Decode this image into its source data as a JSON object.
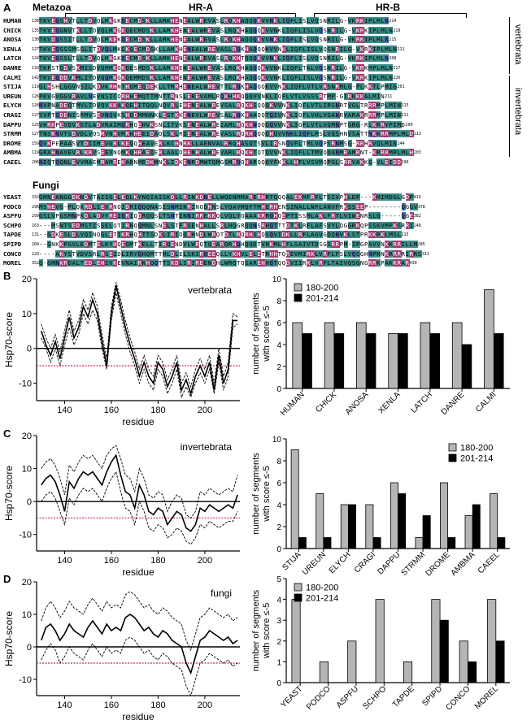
{
  "panels": {
    "A": "A",
    "B": "B",
    "C": "C",
    "D": "D"
  },
  "alignment": {
    "metazoa_title": "Metazoa",
    "fungi_title": "Fungi",
    "hr_a": "HR-A",
    "hr_b": "HR-B",
    "vertebrata_label": "vertebrata",
    "invertebrata_label": "invertebrata",
    "metazoa_rows": [
      {
        "name": "HUMAN",
        "start": "130",
        "end": "214",
        "seq": "TKVEQSHVTLLTDVQLMKGKQECMDSKLLAMKHENEALWREVASLRQKHAQQQKVVNKLIQFLISLVQSNRILG-VKRKIPLMLN"
      },
      {
        "name": "CHICK",
        "start": "135",
        "end": "219",
        "seq": "TKVEQGNVTKLLTDVQLMKGKQECMDSKLLAMKHENEALWREVASLRQKHAQQQKVVNKLIQFLISLVQSNRILG-VKRKIPLMLN"
      },
      {
        "name": "ANOSA",
        "start": "130",
        "end": "215",
        "seq": "TKVDQSSITLLTDVQLMKEKQECMDSKLLAMKHENEALWREVASLRQKHAQQQKVVNKLIQFLISLVQSNRILG-VKRKIPLMLN"
      },
      {
        "name": "XENLA",
        "start": "127",
        "end": "211",
        "seq": "TKVEQSSSMSGLITDVQLMKGKQECMDSKLLAMKHENEALWREVASLRQKHAQQQKVVNKLIQFLISLVQSNRILG-VKRKIPLMLN"
      },
      {
        "name": "LATCH",
        "start": "124",
        "end": "208",
        "seq": "TKVEQSSLTLLTDVQLMKGKQECMDSKLLAMKHENEALWREVASLRQKHTQQQKVVNKLIQFLISLVQSNRILG-VKRKIPLMLN"
      },
      {
        "name": "DANRE",
        "start": "133",
        "end": "217",
        "seq": "TKFSTQDVSKMISDVQMMKGKQESMDSKLLAMKHENEALWREVASLRQKHAQQQKVVNKLIQFLTALVQSNRILG-VKRKMPLMLN"
      },
      {
        "name": "CALMI",
        "start": "142",
        "end": "226",
        "seq": "TKVEQDDVKMLITDVQQMKGKQEMMDSKLLAMKHENEALWREVASLRQKHAQQQKVVNKLIQFLISLVQSNRILG-VKRKIPLMLN"
      },
      {
        "name": "STIJA",
        "start": "119",
        "end": "201",
        "seq": "GLHSHLGGVNSILKDVKRHNTHQMEQDEKLLTMRHENEALWREVTTLRQKHAQQQKVVNKLIQFLVTLVRSNRMLG-PLKKTLPMIG"
      },
      {
        "name": "UREUN",
        "start": "126",
        "end": "211",
        "seq": "PKVGVGGVRAVLNEVNSICQRHHEMQTTMNTTRNSLEREVAMLRQKHHKQQQVVNKLIQFLVTLVSSSRTMP-GIRKKKALMIN"
      },
      {
        "name": "ELYCH",
        "start": "128",
        "end": "215",
        "seq": "NVPNADEQTMVLTDVQVKKAKQEHITQQLNQVRLEHENEALWREVSALRQKHSQQQKVVNKLIQFLVTLIRSNRTVGLTRRRMPLMIN"
      },
      {
        "name": "CRAGI",
        "start": "127",
        "end": "211",
        "seq": "SVPTQDENISRMVSEVNQVKSHQDMMNNKLESTKKENEVLWREVSALRQKHAHQQTQIVNKLIQFLVHLVGANRVARAKRRRMPLMIN"
      },
      {
        "name": "DAPPU",
        "start": "125",
        "end": "209",
        "seq": "VHRKPEVDVKSTLADVRAIMQRHQEHVKSNLITVKSENEALWREIAMLRQKHNQQQQVVNKLIQFLVTLVQMNPTGRG-RLKRRYPIMD"
      },
      {
        "name": "STRMM",
        "start": "127",
        "end": "213",
        "seq": "TNSKNVTSDVDLVQSRVNHVMRHHEEIDAQLSKLRQENEALWREVASLRQRHQQQQHQVVNKLIQFLMSLVQSHNVSATTNKKRRMPLMLD"
      },
      {
        "name": "DROME",
        "start": "159",
        "end": "244",
        "seq": "QVKPEPAASVTDIIMEVGRLKEQQHEAVERLKCHNRKLLAENVALRRQHASQTSVLIRSNQVFLTMLVQPSRNMSG-RRHRVQLMIN"
      },
      {
        "name": "AMBMA",
        "start": "119",
        "end": "203",
        "seq": "GRAHNAVEVRLKRVSEEVNQMKQHRAEIERLAALDHENRALWREVARLRQKHTQTQVVNKLIQFLLTMVQQANMRAMRNT-KRRRMPLMLH"
      },
      {
        "name": "CAEEL",
        "start": "206",
        "end": "290",
        "seq": "NEQTQQNLEVVMAEMRAMREKARNMEDKMNKLIDKENRDMWTQMGSMRQQHARQQQYFKKLLHFLVSVMQPGLSRRVAKKG-VLEIDD"
      }
    ],
    "fungi_rows": [
      {
        "name": "YEAST",
        "start": "332",
        "end": "419",
        "seq": "GMNEANGGDKNDVTAIIGELEQLKYNQIAISKDLLRINKDNELLWQENMMARERHRTQQQALEKMFRFLTSIVPHLDP---KMIMDGLGDP"
      },
      {
        "name": "PODCO",
        "start": "296",
        "end": "378",
        "seq": "MSHEVG-PLQKRDLIEVRNQIDRIQQQNASISNMINRINQDHNSLYQAVMQFTMHERHENSINALLNFLANVFRKSSEEP--------QGGV"
      },
      {
        "name": "ASPFU",
        "start": "299",
        "end": "382",
        "seq": "GSLVPGSMNPKDLADVYREIQRIQDRQQSLTSNTINNIRREKKQLVQLYQAAAKRRQHQEPTISSMLAKLFRTLVIWENRSLQ-----QGE"
      },
      {
        "name": "SCHPO",
        "start": "163",
        "end": "248",
        "seq": "---MSNTSEDMSTISSELQTIRNQQMNLSNELSTFRSENHALLSRLHQGRQQNSRHQTTTDTKLRFLAFSVYLDGGRKQPSSKVMPKSRRI"
      },
      {
        "name": "TAPDE",
        "start": "131",
        "end": "215",
        "seq": "--GDKESLDLVQINQGLETIKRHQHTTSDKLIRIDQRHNDLWRQTDTLRQRHSHQSQVIDKLLRFLAGVGQQNVKLSTPRKKRKLMSL"
      },
      {
        "name": "SPIPD",
        "start": "204",
        "end": "285",
        "seq": "--GNKKPGVLEDMTELKYHQEQMTKELLTIRQENDVLWRQTQEARQRHQHQQDTVNKMLHFLSAIVTDSGSRRPM-IPGPAVVNKKRRILLM"
      },
      {
        "name": "CONCO",
        "start": "229",
        "end": "311",
        "seq": "----AKYSTVDVSRLRSEIDLIRYQHQMTTMLDLELSKIRQEEQLLYKHVLELETRHHTQREVMIRKLVRFLFSLVQSGHNPNNKRRRRIRRS"
      },
      {
        "name": "MOREL",
        "start": "352",
        "end": "439",
        "seq": "G-GMNKRDALTEDLEHIVKEVNAIRKHQQTTSKDLIRIREENDHLWRQTQSAREHHQTQQDVIIRKLVRFLTAIVQSGNGRRKPAKKRAR"
      }
    ]
  },
  "chart_data": [
    {
      "type": "line",
      "panel": "B",
      "title": "vertebrata",
      "xlabel": "residue",
      "ylabel": "Hsp70-score",
      "xlim": [
        128,
        215
      ],
      "ylim": [
        -15,
        20
      ],
      "xticks": [
        140,
        160,
        180,
        200
      ],
      "yticks": [
        -10,
        0,
        10,
        20
      ],
      "threshold": -5,
      "x": [
        130,
        132,
        134,
        136,
        138,
        140,
        142,
        144,
        146,
        148,
        150,
        152,
        154,
        156,
        158,
        160,
        162,
        164,
        166,
        168,
        170,
        172,
        174,
        176,
        178,
        180,
        182,
        184,
        186,
        188,
        190,
        192,
        194,
        196,
        198,
        200,
        202,
        204,
        206,
        208,
        210,
        212,
        214
      ],
      "series": [
        {
          "values": [
            5,
            1,
            -2,
            2,
            -3,
            3,
            9,
            3,
            6,
            12,
            9,
            14,
            10,
            2,
            -5,
            10,
            18,
            12,
            6,
            1,
            -3,
            -8,
            -4,
            -8,
            -10,
            -4,
            -6,
            -11,
            -8,
            -4,
            -12,
            -9,
            -13,
            -8,
            -5,
            -8,
            -4,
            -12,
            -2,
            -10,
            -6,
            8,
            8
          ]
        },
        {
          "values": [
            3,
            0,
            -4,
            0,
            -5,
            1,
            6,
            1,
            4,
            10,
            7,
            11,
            8,
            0,
            -6,
            8,
            16,
            10,
            4,
            -1,
            -5,
            -10,
            -6,
            -10,
            -12,
            -6,
            -8,
            -13,
            -10,
            -6,
            -14,
            -11,
            -14,
            -10,
            -7,
            -10,
            -6,
            -13,
            -4,
            -12,
            -8,
            6,
            7
          ]
        },
        {
          "values": [
            7,
            3,
            0,
            4,
            -1,
            5,
            11,
            5,
            8,
            14,
            11,
            16,
            12,
            4,
            -3,
            12,
            19,
            14,
            8,
            3,
            -1,
            -6,
            -2,
            -6,
            -8,
            -2,
            -4,
            -9,
            -6,
            -2,
            -10,
            -7,
            -11,
            -6,
            -3,
            -6,
            -2,
            -10,
            0,
            -8,
            -4,
            10,
            9
          ]
        }
      ]
    },
    {
      "type": "bar",
      "panel": "B",
      "ylabel": "number of segments with score ≤-5",
      "categories": [
        "HUMAN",
        "CHICK",
        "ANOSA",
        "XENLA",
        "LATCH",
        "DANRE",
        "CALMI"
      ],
      "ylim": [
        0,
        10
      ],
      "yticks": [
        0,
        2,
        4,
        6,
        8,
        10
      ],
      "legend_position": "top-left",
      "series": [
        {
          "name": "180-200",
          "color": "#b5b5b5",
          "values": [
            6,
            6,
            6,
            5,
            6,
            6,
            9
          ]
        },
        {
          "name": "201-214",
          "color": "#000000",
          "values": [
            5,
            5,
            5,
            5,
            5,
            4,
            5
          ]
        }
      ]
    },
    {
      "type": "line",
      "panel": "C",
      "title": "invertebrata",
      "xlabel": "residue",
      "ylabel": "Hsp70-score",
      "xlim": [
        128,
        215
      ],
      "ylim": [
        -15,
        20
      ],
      "xticks": [
        140,
        160,
        180,
        200
      ],
      "yticks": [
        -10,
        0,
        10,
        20
      ],
      "threshold": -5,
      "x": [
        130,
        132,
        134,
        136,
        138,
        140,
        142,
        144,
        146,
        148,
        150,
        152,
        154,
        156,
        158,
        160,
        162,
        164,
        166,
        168,
        170,
        172,
        174,
        176,
        178,
        180,
        182,
        184,
        186,
        188,
        190,
        192,
        194,
        196,
        198,
        200,
        202,
        204,
        206,
        208,
        210,
        212,
        214
      ],
      "series": [
        {
          "values": [
            5,
            7,
            8,
            6,
            2,
            -3,
            6,
            4,
            7,
            9,
            8,
            9,
            7,
            5,
            9,
            12,
            14,
            8,
            3,
            2,
            -2,
            5,
            2,
            -3,
            -4,
            -2,
            -3,
            -7,
            -5,
            -3,
            -4,
            -8,
            -9,
            -7,
            -2,
            -3,
            -1,
            -2,
            -3,
            -2,
            -1,
            -2,
            2
          ]
        },
        {
          "values": [
            0,
            2,
            3,
            1,
            -3,
            -7,
            1,
            -1,
            2,
            4,
            3,
            4,
            2,
            0,
            4,
            7,
            9,
            3,
            -2,
            -3,
            -7,
            0,
            -3,
            -8,
            -9,
            -7,
            -8,
            -11,
            -10,
            -8,
            -9,
            -12,
            -13,
            -11,
            -7,
            -8,
            -6,
            -7,
            -8,
            -7,
            -6,
            -6,
            -3
          ]
        },
        {
          "values": [
            10,
            12,
            13,
            11,
            7,
            2,
            11,
            9,
            12,
            14,
            13,
            14,
            12,
            10,
            14,
            16,
            17,
            13,
            8,
            7,
            3,
            10,
            7,
            2,
            1,
            3,
            2,
            -3,
            0,
            2,
            1,
            -4,
            -5,
            -3,
            3,
            2,
            4,
            3,
            2,
            3,
            4,
            3,
            8
          ]
        }
      ]
    },
    {
      "type": "bar",
      "panel": "C",
      "ylabel": "number of segments with score ≤-5",
      "categories": [
        "STIJA",
        "UREUN",
        "ELYCH",
        "CRAGI",
        "DAPPU",
        "STRMM",
        "DROME",
        "AMBMA",
        "CAEEL"
      ],
      "ylim": [
        0,
        10
      ],
      "yticks": [
        0,
        2,
        4,
        6,
        8,
        10
      ],
      "legend_position": "top-right",
      "series": [
        {
          "name": "180-200",
          "color": "#b5b5b5",
          "values": [
            9,
            5,
            4,
            4,
            6,
            1,
            6,
            3,
            5
          ]
        },
        {
          "name": "201-214",
          "color": "#000000",
          "values": [
            1,
            1,
            4,
            1,
            5,
            3,
            1,
            4,
            1
          ]
        }
      ]
    },
    {
      "type": "line",
      "panel": "D",
      "title": "fungi",
      "xlabel": "residue",
      "ylabel": "Hsp70-score",
      "xlim": [
        128,
        215
      ],
      "ylim": [
        -15,
        20
      ],
      "xticks": [
        140,
        160,
        180,
        200
      ],
      "yticks": [
        -10,
        0,
        10,
        20
      ],
      "threshold": -5,
      "x": [
        130,
        132,
        134,
        136,
        138,
        140,
        142,
        144,
        146,
        148,
        150,
        152,
        154,
        156,
        158,
        160,
        162,
        164,
        166,
        168,
        170,
        172,
        174,
        176,
        178,
        180,
        182,
        184,
        186,
        188,
        190,
        192,
        194,
        196,
        198,
        200,
        202,
        204,
        206,
        208,
        210,
        212,
        214
      ],
      "series": [
        {
          "values": [
            2,
            6,
            7,
            5,
            2,
            4,
            7,
            5,
            4,
            3,
            6,
            8,
            6,
            4,
            7,
            5,
            6,
            5,
            9,
            10,
            9,
            7,
            5,
            6,
            4,
            3,
            5,
            4,
            2,
            1,
            0,
            -5,
            -8,
            -3,
            2,
            3,
            5,
            4,
            3,
            2,
            3,
            1,
            2
          ]
        },
        {
          "values": [
            -4,
            -1,
            1,
            -1,
            -5,
            -3,
            0,
            -2,
            -3,
            -4,
            -1,
            1,
            -1,
            -3,
            0,
            -2,
            -1,
            -2,
            2,
            3,
            2,
            0,
            -2,
            -1,
            -3,
            -4,
            -2,
            -3,
            -5,
            -6,
            -7,
            -12,
            -15,
            -10,
            -5,
            -4,
            -2,
            -3,
            -4,
            -5,
            -4,
            -6,
            -5
          ]
        },
        {
          "values": [
            8,
            12,
            14,
            12,
            9,
            11,
            14,
            12,
            11,
            10,
            13,
            15,
            13,
            11,
            14,
            12,
            13,
            12,
            16,
            17,
            16,
            14,
            12,
            13,
            11,
            10,
            12,
            11,
            9,
            8,
            7,
            2,
            -1,
            4,
            9,
            10,
            12,
            11,
            10,
            9,
            10,
            8,
            9
          ]
        }
      ]
    },
    {
      "type": "bar",
      "panel": "D",
      "ylabel": "number of segments with score ≤-5",
      "categories": [
        "YEAST",
        "PODCO",
        "ASPFU",
        "SCHPO",
        "TAPDE",
        "SPIPD",
        "CONCO",
        "MOREL"
      ],
      "ylim": [
        0,
        5
      ],
      "yticks": [
        0,
        1,
        2,
        3,
        4,
        5
      ],
      "legend_position": "top-left",
      "series": [
        {
          "name": "180-200",
          "color": "#b5b5b5",
          "values": [
            4,
            1,
            2,
            4,
            1,
            4,
            2,
            4
          ]
        },
        {
          "name": "201-214",
          "color": "#000000",
          "values": [
            0,
            0,
            0,
            0,
            0,
            3,
            1,
            2
          ]
        }
      ]
    }
  ],
  "colors": {
    "teal": "#3c8f8a",
    "magenta": "#a33a73",
    "blue": "#4c6fa8",
    "threshold": "#d0206a"
  }
}
